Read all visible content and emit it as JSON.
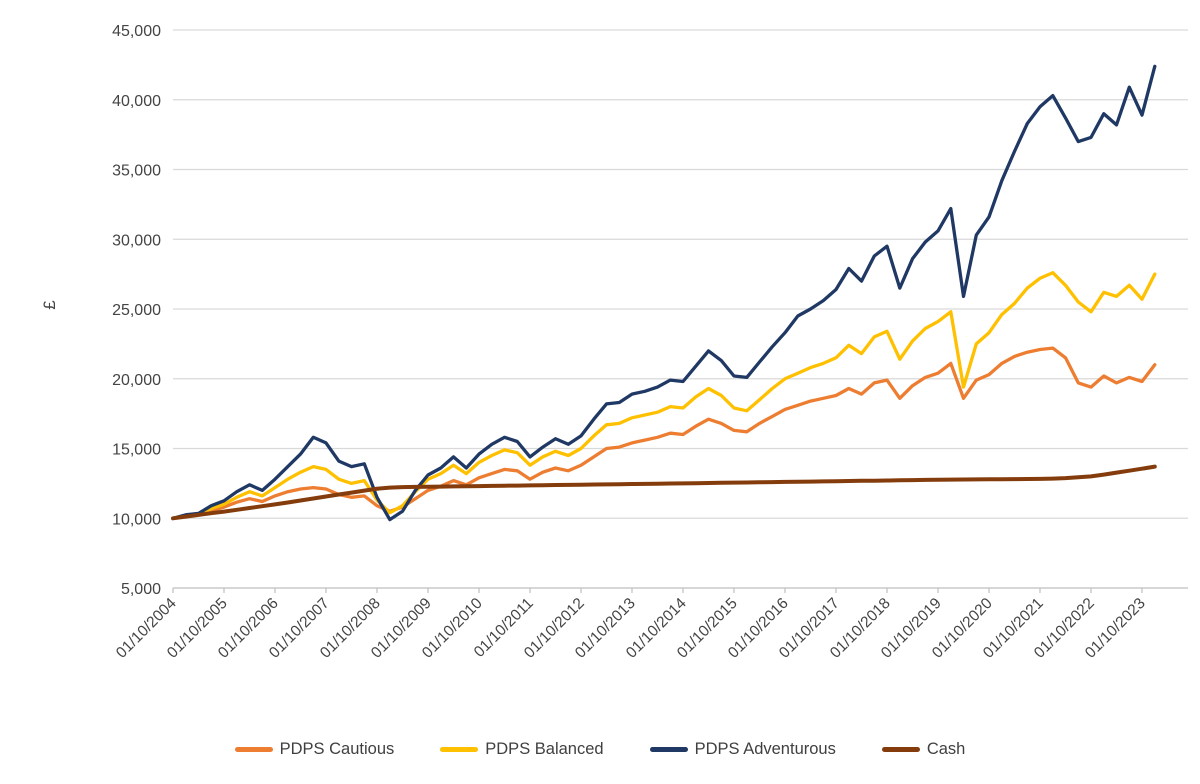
{
  "chart_data": {
    "type": "line",
    "title": "",
    "xlabel": "",
    "ylabel": "£",
    "ylim": [
      5000,
      45000
    ],
    "ytick_step": 5000,
    "ytick_labels": [
      "5,000",
      "10,000",
      "15,000",
      "20,000",
      "25,000",
      "30,000",
      "35,000",
      "40,000",
      "45,000"
    ],
    "xtick_labels": [
      "01/10/2004",
      "01/10/2005",
      "01/10/2006",
      "01/10/2007",
      "01/10/2008",
      "01/10/2009",
      "01/10/2010",
      "01/10/2011",
      "01/10/2012",
      "01/10/2013",
      "01/10/2014",
      "01/10/2015",
      "01/10/2016",
      "01/10/2017",
      "01/10/2018",
      "01/10/2019",
      "01/10/2020",
      "01/10/2021",
      "01/10/2022",
      "01/10/2023"
    ],
    "x_start": "01/10/2004",
    "x_end": "01/01/2024",
    "points_per_year": 4,
    "grid": "horizontal",
    "legend_position": "bottom",
    "axis_color": "#BFBFBF",
    "gridline_color": "#D9D9D9",
    "label_color": "#444444",
    "series": [
      {
        "name": "PDPS Cautious",
        "color": "#ED7D31",
        "values": [
          10000,
          10150,
          10250,
          10550,
          10800,
          11150,
          11400,
          11200,
          11600,
          11900,
          12100,
          12200,
          12100,
          11700,
          11500,
          11600,
          10900,
          10500,
          10800,
          11400,
          12000,
          12300,
          12700,
          12400,
          12900,
          13200,
          13500,
          13400,
          12800,
          13300,
          13600,
          13400,
          13800,
          14400,
          15000,
          15100,
          15400,
          15600,
          15800,
          16100,
          16000,
          16600,
          17100,
          16800,
          16300,
          16200,
          16800,
          17300,
          17800,
          18100,
          18400,
          18600,
          18800,
          19300,
          18900,
          19700,
          19900,
          18600,
          19500,
          20100,
          20400,
          21100,
          18600,
          19900,
          20300,
          21100,
          21600,
          21900,
          22100,
          22200,
          21500,
          19700,
          19400,
          20200,
          19700,
          20100,
          19800,
          21000
        ]
      },
      {
        "name": "PDPS Balanced",
        "color": "#FFC000",
        "values": [
          10000,
          10200,
          10300,
          10700,
          11000,
          11500,
          11900,
          11600,
          12200,
          12800,
          13300,
          13700,
          13500,
          12800,
          12500,
          12700,
          11300,
          10400,
          10900,
          11900,
          12800,
          13200,
          13800,
          13200,
          14000,
          14500,
          14900,
          14700,
          13800,
          14400,
          14800,
          14500,
          15000,
          15900,
          16700,
          16800,
          17200,
          17400,
          17600,
          18000,
          17900,
          18700,
          19300,
          18800,
          17900,
          17700,
          18500,
          19300,
          20000,
          20400,
          20800,
          21100,
          21500,
          22400,
          21800,
          23000,
          23400,
          21400,
          22700,
          23600,
          24100,
          24800,
          19400,
          22500,
          23300,
          24600,
          25400,
          26500,
          27200,
          27600,
          26700,
          25500,
          24800,
          26200,
          25900,
          26700,
          25700,
          27500
        ]
      },
      {
        "name": "PDPS Adventurous",
        "color": "#1F3864",
        "values": [
          10000,
          10250,
          10350,
          10900,
          11250,
          11900,
          12400,
          12000,
          12800,
          13700,
          14600,
          15800,
          15400,
          14100,
          13700,
          13900,
          11500,
          9900,
          10500,
          12000,
          13100,
          13600,
          14400,
          13600,
          14600,
          15300,
          15800,
          15500,
          14400,
          15100,
          15700,
          15300,
          15900,
          17100,
          18200,
          18300,
          18900,
          19100,
          19400,
          19900,
          19800,
          20900,
          22000,
          21300,
          20200,
          20100,
          21200,
          22300,
          23300,
          24500,
          25000,
          25600,
          26400,
          27900,
          27000,
          28800,
          29500,
          26500,
          28600,
          29800,
          30600,
          32200,
          25900,
          30300,
          31600,
          34200,
          36300,
          38300,
          39500,
          40300,
          38700,
          37000,
          37300,
          39000,
          38200,
          40900,
          38900,
          42400
        ]
      },
      {
        "name": "Cash",
        "color": "#843C0C",
        "values": [
          10000,
          10120,
          10240,
          10360,
          10480,
          10608,
          10736,
          10864,
          10990,
          11130,
          11270,
          11415,
          11560,
          11700,
          11840,
          11980,
          12120,
          12200,
          12230,
          12250,
          12260,
          12272,
          12284,
          12296,
          12308,
          12320,
          12332,
          12344,
          12356,
          12368,
          12380,
          12392,
          12404,
          12416,
          12428,
          12440,
          12452,
          12464,
          12476,
          12488,
          12500,
          12513,
          12526,
          12539,
          12552,
          12565,
          12578,
          12591,
          12604,
          12617,
          12630,
          12643,
          12656,
          12669,
          12682,
          12695,
          12708,
          12721,
          12734,
          12747,
          12760,
          12768,
          12776,
          12784,
          12792,
          12800,
          12808,
          12814,
          12820,
          12840,
          12880,
          12940,
          13000,
          13130,
          13270,
          13410,
          13550,
          13700
        ]
      }
    ]
  }
}
